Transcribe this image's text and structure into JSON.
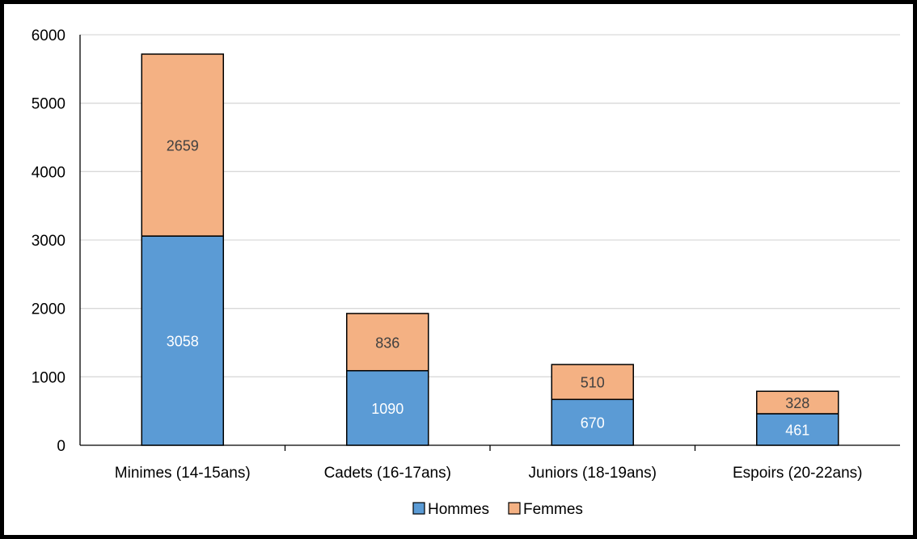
{
  "chart_data": {
    "type": "bar",
    "stacked": true,
    "categories": [
      "Minimes (14-15ans)",
      "Cadets (16-17ans)",
      "Juniors (18-19ans)",
      "Espoirs (20-22ans)"
    ],
    "series": [
      {
        "name": "Hommes",
        "values": [
          3058,
          1090,
          670,
          461
        ],
        "color": "#5b9bd5",
        "label_color": "#ffffff"
      },
      {
        "name": "Femmes",
        "values": [
          2659,
          836,
          510,
          328
        ],
        "color": "#f4b183",
        "label_color": "#404040"
      }
    ],
    "ylim": [
      0,
      6000
    ],
    "yticks": [
      0,
      1000,
      2000,
      3000,
      4000,
      5000,
      6000
    ],
    "grid": true,
    "legend": "bottom-center",
    "gridline_color": "#d9d9d9",
    "bar_outline_color": "#000000"
  }
}
